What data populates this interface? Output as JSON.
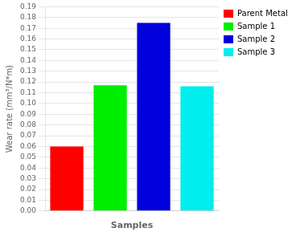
{
  "chart_data": {
    "type": "bar",
    "categories": [
      "Parent Metal",
      "Sample 1",
      "Sample 2",
      "Sample 3"
    ],
    "values": [
      0.06,
      0.117,
      0.175,
      0.116
    ],
    "colors": [
      "#ff0000",
      "#00ee00",
      "#0000dd",
      "#00eeee"
    ],
    "xlabel": "Samples",
    "ylabel": "Wear rate (mm³/N*m)",
    "ylim": [
      0.0,
      0.19
    ],
    "yticks": [
      {
        "value": 0.0,
        "label": "0.00"
      },
      0.01,
      0.02,
      0.03,
      0.04,
      0.05,
      0.06,
      0.07,
      0.08,
      0.09,
      {
        "value": 0.1,
        "label": "0.10"
      },
      0.11,
      0.12,
      0.13,
      0.14,
      0.15,
      0.16,
      0.17,
      0.18,
      0.19
    ],
    "grid": true,
    "legend": "upper right",
    "tick_labels": "y"
  }
}
